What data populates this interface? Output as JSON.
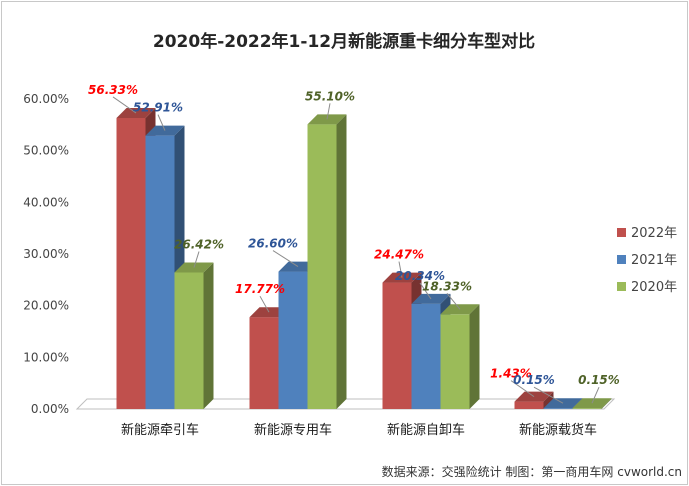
{
  "chart_data": {
    "type": "bar",
    "title": "2020年-2022年1-12月新能源重卡细分车型对比",
    "categories": [
      "新能源牵引车",
      "新能源专用车",
      "新能源自卸车",
      "新能源载货车"
    ],
    "series": [
      {
        "name": "2022年",
        "color": "#c0504d",
        "label_color": "#ff0000",
        "values": [
          56.33,
          17.77,
          24.47,
          1.43
        ],
        "labels": [
          "56.33%",
          "17.77%",
          "24.47%",
          "1.43%"
        ]
      },
      {
        "name": "2021年",
        "color": "#4f81bd",
        "label_color": "#2e5597",
        "values": [
          52.91,
          26.6,
          20.34,
          0.15
        ],
        "labels": [
          "52.91%",
          "26.60%",
          "20.34%",
          "0.15%"
        ]
      },
      {
        "name": "2020年",
        "color": "#9bbb59",
        "label_color": "#4f6228",
        "values": [
          26.42,
          55.1,
          18.33,
          0.15
        ],
        "labels": [
          "26.42%",
          "55.10%",
          "18.33%",
          "0.15%"
        ]
      }
    ],
    "yticks": [
      "0.00%",
      "10.00%",
      "20.00%",
      "30.00%",
      "40.00%",
      "50.00%",
      "60.00%"
    ],
    "ylim": [
      0,
      60
    ],
    "grid": false,
    "style": "3d-column",
    "legend_position": "right"
  },
  "source_note": "数据来源：交强险统计  制图：第一商用车网 cvworld.cn"
}
